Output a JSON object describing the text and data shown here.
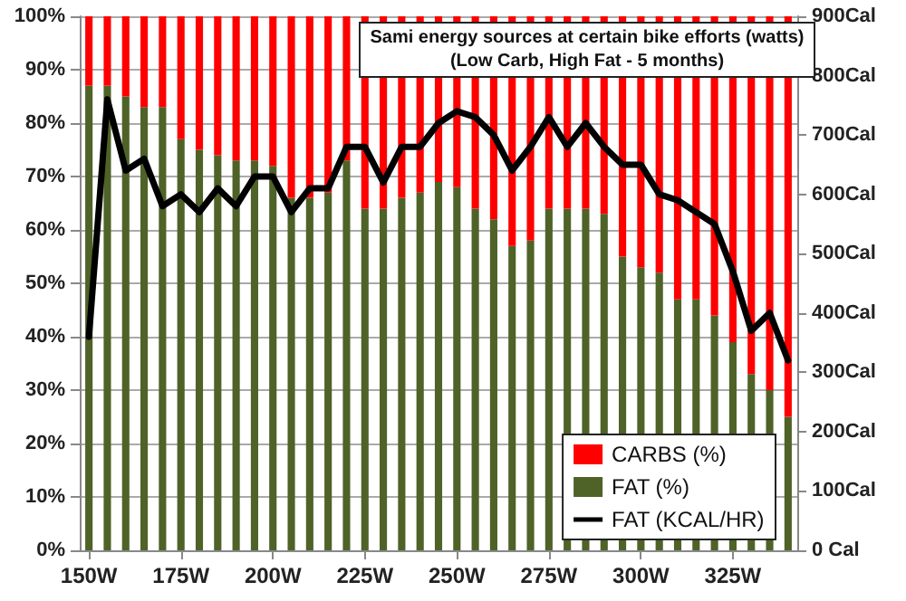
{
  "chart_data": {
    "type": "bar",
    "title": "Sami energy sources at certain bike efforts (watts)",
    "subtitle": "(Low Carb, High Fat - 5 months)",
    "categories": [
      "150W",
      null,
      null,
      null,
      null,
      "175W",
      null,
      null,
      null,
      null,
      "200W",
      null,
      null,
      null,
      null,
      "225W",
      null,
      null,
      null,
      null,
      "250W",
      null,
      null,
      null,
      null,
      "275W",
      null,
      null,
      null,
      null,
      "300W",
      null,
      null,
      null,
      null,
      "325W",
      null,
      null,
      null
    ],
    "stacked": true,
    "series": [
      {
        "name": "FAT (%)",
        "color": "#4f6228",
        "values": [
          87,
          87,
          85,
          83,
          83,
          77,
          75,
          74,
          73,
          73,
          72,
          66,
          66,
          67,
          73,
          64,
          64,
          66,
          67,
          69,
          68,
          64,
          62,
          57,
          58,
          64,
          64,
          64,
          63,
          55,
          53,
          52,
          47,
          47,
          44,
          39,
          33,
          30,
          25
        ]
      },
      {
        "name": "CARBS (%)",
        "color": "#ff0000",
        "values": [
          13,
          13,
          15,
          17,
          17,
          23,
          25,
          26,
          27,
          27,
          28,
          34,
          34,
          33,
          27,
          36,
          36,
          34,
          33,
          31,
          32,
          36,
          38,
          43,
          42,
          36,
          36,
          36,
          37,
          45,
          47,
          48,
          53,
          53,
          56,
          61,
          67,
          70,
          75
        ]
      },
      {
        "name": "FAT (KCAL/HR)",
        "type": "line",
        "axis": "y2",
        "color": "#000000",
        "values": [
          360,
          760,
          640,
          660,
          580,
          600,
          570,
          610,
          580,
          630,
          630,
          570,
          610,
          610,
          680,
          680,
          620,
          680,
          680,
          720,
          740,
          730,
          700,
          640,
          680,
          730,
          680,
          720,
          680,
          650,
          650,
          600,
          590,
          570,
          550,
          470,
          370,
          400,
          320
        ]
      }
    ],
    "ylim": [
      0,
      100
    ],
    "yticks": [
      {
        "value": 0,
        "label": "0%"
      },
      {
        "value": 10,
        "label": "10%"
      },
      {
        "value": 20,
        "label": "20%"
      },
      {
        "value": 30,
        "label": "30%"
      },
      {
        "value": 40,
        "label": "40%"
      },
      {
        "value": 50,
        "label": "50%"
      },
      {
        "value": 60,
        "label": "60%"
      },
      {
        "value": 70,
        "label": "70%"
      },
      {
        "value": 80,
        "label": "80%"
      },
      {
        "value": 90,
        "label": "90%"
      },
      {
        "value": 100,
        "label": "100%"
      }
    ],
    "y2lim": [
      0,
      900
    ],
    "y2ticks": [
      {
        "value": 0,
        "label": "0 Cal"
      },
      {
        "value": 100,
        "label": "100Cal"
      },
      {
        "value": 200,
        "label": "200Cal"
      },
      {
        "value": 300,
        "label": "300Cal"
      },
      {
        "value": 400,
        "label": "400Cal"
      },
      {
        "value": 500,
        "label": "500Cal"
      },
      {
        "value": 600,
        "label": "600Cal"
      },
      {
        "value": 700,
        "label": "700Cal"
      },
      {
        "value": 800,
        "label": "800Cal"
      },
      {
        "value": 900,
        "label": "900Cal"
      }
    ],
    "grid": "y",
    "legend": "bottom right",
    "marker": "none",
    "line_style": "solid"
  }
}
